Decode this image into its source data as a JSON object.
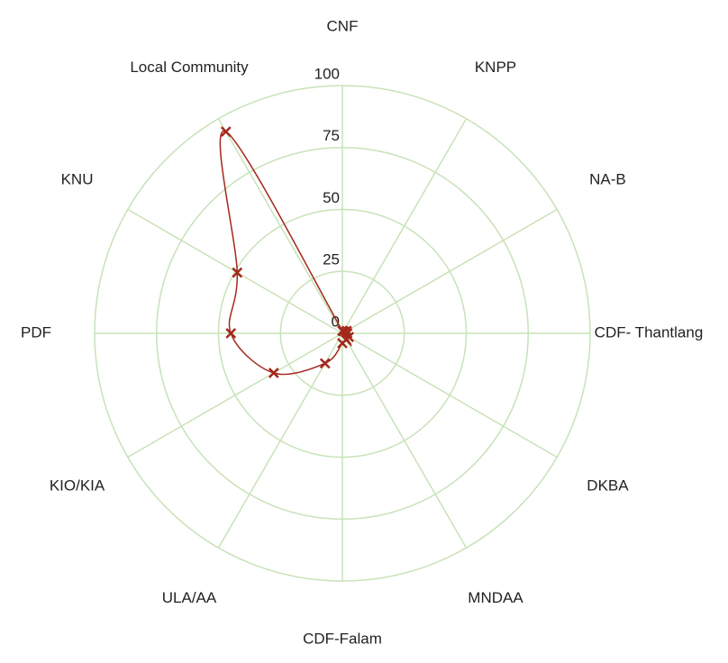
{
  "chart_data": {
    "type": "radar",
    "categories": [
      "CNF",
      "KNPP",
      "NA-B",
      "CDF- Thantlang",
      "DKBA",
      "MNDAA",
      "CDF-Falam",
      "ULA/AA",
      "KIO/KIA",
      "PDF",
      "KNU",
      "Local Community"
    ],
    "series": [
      {
        "color": "#a3281c",
        "values": [
          1,
          1,
          2,
          2,
          3,
          3,
          4,
          14,
          32,
          45,
          49,
          94
        ]
      }
    ],
    "rlim": [
      0,
      100
    ],
    "rticks": [
      0,
      25,
      50,
      75,
      100
    ],
    "grid_color": "#c8e2b9"
  }
}
